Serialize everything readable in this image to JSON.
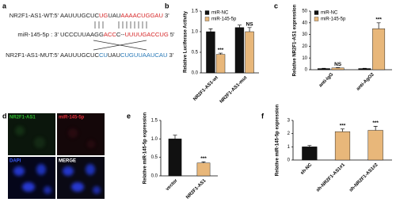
{
  "sequence_panel": {
    "label": "a",
    "lines": [
      {
        "name": "NR2F1-AS1-WT:5'",
        "segments": [
          {
            "text": "AAUUUGCUC",
            "color": "#222"
          },
          {
            "text": "UG",
            "color": "#d62728"
          },
          {
            "text": "UAU",
            "color": "#222"
          },
          {
            "text": "AAAACUGGAU",
            "color": "#d62728"
          }
        ],
        "end": "3'"
      },
      {
        "name": "miR-145-5p : 3'",
        "segments": [
          {
            "text": "UCCCUUAAGG",
            "color": "#222"
          },
          {
            "text": "ACC",
            "color": "#d62728"
          },
          {
            "text": "C--",
            "color": "#222"
          },
          {
            "text": "UUUUGACCUG",
            "color": "#d62728"
          }
        ],
        "end": "5'"
      },
      {
        "name": "NR2F1-AS1-MUT:5'",
        "segments": [
          {
            "text": "AAUUUGCUC",
            "color": "#222"
          },
          {
            "text": "CU",
            "color": "#2a7ab8"
          },
          {
            "text": "UAU",
            "color": "#222"
          },
          {
            "text": "CUGUUAAUCAU",
            "color": "#2a7ab8"
          }
        ],
        "end": "3'"
      }
    ]
  },
  "image_panel": {
    "label": "d",
    "quadrants": [
      {
        "label": "NR2F1-AS1",
        "color": "#2fbf2f"
      },
      {
        "label": "miR-145-5p",
        "color": "#e0303a"
      },
      {
        "label": "DAPI",
        "color": "#3a5cff"
      },
      {
        "label": "MERGE",
        "color": "#ffffff"
      }
    ]
  },
  "chart_data": [
    {
      "type": "bar",
      "label": "b",
      "ylabel": "Relative Luciferase Activity",
      "categories": [
        "NR2F1-AS1-wt",
        "NR2F1-AS1-mut"
      ],
      "series": [
        {
          "name": "miR-NC",
          "color": "#111111",
          "values": [
            1.0,
            1.1
          ],
          "errors": [
            0.07,
            0.06
          ],
          "significance": [
            null,
            null
          ]
        },
        {
          "name": "miR-145-5p",
          "color": "#e8b77a",
          "values": [
            0.45,
            1.0
          ],
          "errors": [
            0.03,
            0.1
          ],
          "significance": [
            "***",
            "NS"
          ]
        }
      ],
      "ylim": [
        0,
        1.5
      ],
      "yticks": [
        {
          "value": 0,
          "label": "0.0"
        },
        0.5,
        {
          "value": 1,
          "label": "1.0"
        },
        1.5
      ]
    },
    {
      "type": "bar",
      "label": "c",
      "ylabel": "Relative NR2F1-AS1 expression",
      "categories": [
        "anti-IgG",
        "anti-AgO2"
      ],
      "series": [
        {
          "name": "miR-NC",
          "color": "#111111",
          "values": [
            1,
            1
          ],
          "errors": [
            0.2,
            0.2
          ],
          "significance": [
            null,
            null
          ]
        },
        {
          "name": "miR-145-5p",
          "color": "#e8b77a",
          "values": [
            1.5,
            35
          ],
          "errors": [
            0.3,
            5
          ],
          "significance": [
            "NS",
            "***"
          ]
        }
      ],
      "ylim": [
        0,
        50
      ],
      "yticks": [
        0,
        10,
        20,
        30,
        40,
        50
      ]
    },
    {
      "type": "bar",
      "label": "e",
      "ylabel": "Relative miR-145-5p expression",
      "categories": [
        "vector",
        "NR2F1-AS1"
      ],
      "values": [
        1.0,
        0.35
      ],
      "errors": [
        0.1,
        0.03
      ],
      "colors": [
        "#111111",
        "#e8b77a"
      ],
      "significance": [
        null,
        "***"
      ],
      "ylim": [
        0,
        1.5
      ],
      "yticks": [
        {
          "value": 0,
          "label": "0.0"
        },
        0.5,
        {
          "value": 1,
          "label": "1.0"
        },
        1.5
      ]
    },
    {
      "type": "bar",
      "label": "f",
      "ylabel": "Relative miR-145-5p expression",
      "categories": [
        "sh-NC",
        "sh-NR2F1-AS1#1",
        "sh-NR2F1-AS1#2"
      ],
      "values": [
        1.0,
        2.15,
        2.25
      ],
      "errors": [
        0.1,
        0.2,
        0.3
      ],
      "colors": [
        "#111111",
        "#e8b77a",
        "#e8b77a"
      ],
      "significance": [
        null,
        "***",
        "***"
      ],
      "ylim": [
        0,
        3
      ],
      "yticks": [
        0,
        1,
        2,
        3
      ]
    }
  ]
}
